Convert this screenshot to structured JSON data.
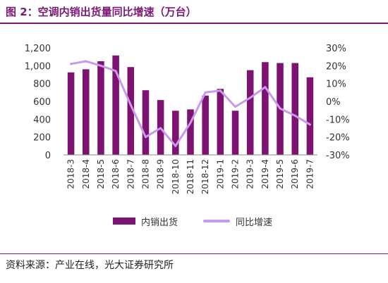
{
  "title": "图 2：空调内销出货量同比增速（万台）",
  "source": "资料来源：产业在线，光大证券研究所",
  "colors": {
    "bar": "#7e1272",
    "line": "#c79af0",
    "accent": "#7d1a78"
  },
  "chart_data": {
    "type": "bar",
    "categories": [
      "2018-3",
      "2018-4",
      "2018-5",
      "2018-6",
      "2018-7",
      "2018-8",
      "2018-9",
      "2018-10",
      "2018-11",
      "2018-12",
      "2019-1",
      "2019-2",
      "2019-3",
      "2019-4",
      "2019-5",
      "2019-6",
      "2019-7"
    ],
    "series": [
      {
        "name": "内销出货",
        "type": "bar",
        "axis": "left",
        "values": [
          925,
          960,
          1050,
          1115,
          985,
          725,
          615,
          495,
          510,
          665,
          740,
          495,
          950,
          1040,
          1030,
          1030,
          870
        ]
      },
      {
        "name": "同比增速",
        "type": "line",
        "axis": "right",
        "values": [
          21,
          22.5,
          20,
          17,
          -2,
          -20,
          -15,
          -25,
          -12,
          5,
          6,
          -3,
          2,
          8,
          -4,
          -8,
          -13
        ]
      }
    ],
    "ylim_left": [
      0,
      1200
    ],
    "yticks_left": [
      "0",
      "200",
      "400",
      "600",
      "800",
      "1,000",
      "1,200"
    ],
    "ylim_right": [
      -30,
      30
    ],
    "yticks_right": [
      "-30%",
      "-20%",
      "-10%",
      "0%",
      "10%",
      "20%",
      "30%"
    ],
    "grid": false,
    "legend": "bottom"
  }
}
